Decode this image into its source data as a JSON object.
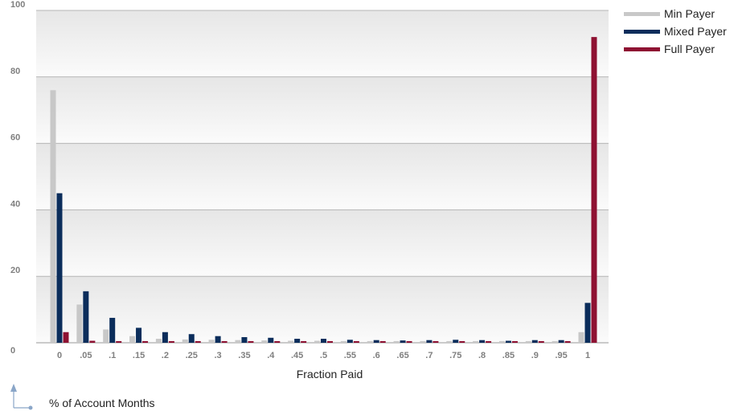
{
  "chart_data": {
    "type": "bar",
    "xlabel": "Fraction Paid",
    "ylabel": "% of Account Months",
    "ylim": [
      0,
      100
    ],
    "yticks": [
      0,
      20,
      40,
      60,
      80,
      100
    ],
    "grid": true,
    "legend_position": "top-right",
    "categories": [
      "0",
      ".05",
      ".1",
      ".15",
      ".2",
      ".25",
      ".3",
      ".35",
      ".4",
      ".45",
      ".5",
      ".55",
      ".6",
      ".65",
      ".7",
      ".75",
      ".8",
      ".85",
      ".9",
      ".95",
      "1"
    ],
    "series": [
      {
        "name": "Min Payer",
        "color": "#c8c8c8",
        "values": [
          76,
          11.5,
          4,
          2,
          1.2,
          1,
          0.9,
          0.8,
          0.7,
          0.6,
          0.6,
          0.5,
          0.5,
          0.5,
          0.5,
          0.5,
          0.5,
          0.5,
          0.5,
          0.5,
          3.2
        ]
      },
      {
        "name": "Mixed Payer",
        "color": "#0b2d5b",
        "values": [
          45,
          15.5,
          7.5,
          4.5,
          3.2,
          2.6,
          2,
          1.7,
          1.5,
          1.2,
          1.2,
          0.9,
          0.8,
          0.7,
          0.8,
          0.9,
          0.8,
          0.6,
          0.8,
          0.8,
          12
        ]
      },
      {
        "name": "Full Payer",
        "color": "#8e1132",
        "values": [
          3.2,
          0.6,
          0.5,
          0.5,
          0.5,
          0.5,
          0.5,
          0.5,
          0.5,
          0.5,
          0.5,
          0.5,
          0.5,
          0.5,
          0.5,
          0.5,
          0.5,
          0.5,
          0.5,
          0.5,
          92
        ]
      }
    ]
  }
}
